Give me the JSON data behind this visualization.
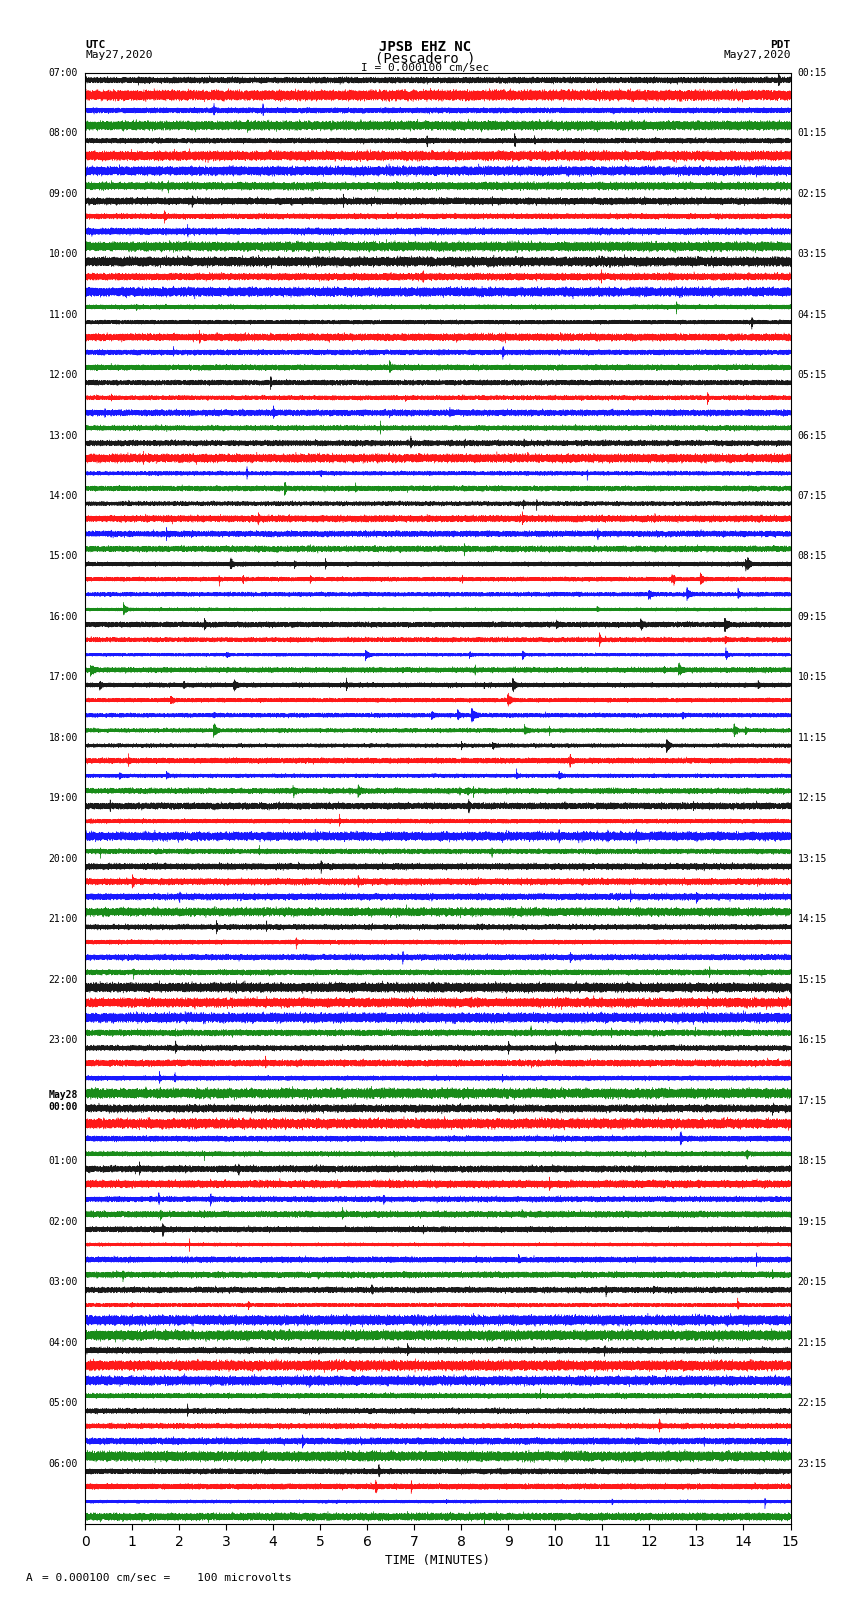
{
  "title_line1": "JPSB EHZ NC",
  "title_line2": "(Pescadero )",
  "title_scale": "I = 0.000100 cm/sec",
  "label_utc": "UTC",
  "label_pdt": "PDT",
  "date_left": "May27,2020",
  "date_right": "May27,2020",
  "xlabel": "TIME (MINUTES)",
  "footer": "= 0.000100 cm/sec =    100 microvolts",
  "footer_left": "A",
  "left_times": [
    "07:00",
    "08:00",
    "09:00",
    "10:00",
    "11:00",
    "12:00",
    "13:00",
    "14:00",
    "15:00",
    "16:00",
    "17:00",
    "18:00",
    "19:00",
    "20:00",
    "21:00",
    "22:00",
    "23:00",
    "May28\n00:00",
    "01:00",
    "02:00",
    "03:00",
    "04:00",
    "05:00",
    "06:00"
  ],
  "right_times": [
    "00:15",
    "01:15",
    "02:15",
    "03:15",
    "04:15",
    "05:15",
    "06:15",
    "07:15",
    "08:15",
    "09:15",
    "10:15",
    "11:15",
    "12:15",
    "13:15",
    "14:15",
    "15:15",
    "16:15",
    "17:15",
    "18:15",
    "19:15",
    "20:15",
    "21:15",
    "22:15",
    "23:15"
  ],
  "n_rows": 24,
  "n_traces_per_row": 4,
  "colors": [
    "black",
    "red",
    "blue",
    "green"
  ],
  "trace_duration_minutes": 15,
  "sample_rate": 100,
  "bg_color": "white",
  "plot_bg": "white",
  "xlim": [
    0,
    15
  ],
  "xticks": [
    0,
    1,
    2,
    3,
    4,
    5,
    6,
    7,
    8,
    9,
    10,
    11,
    12,
    13,
    14,
    15
  ],
  "amplitude_scale": 0.35,
  "noise_amplitude": 0.08,
  "seed": 42
}
